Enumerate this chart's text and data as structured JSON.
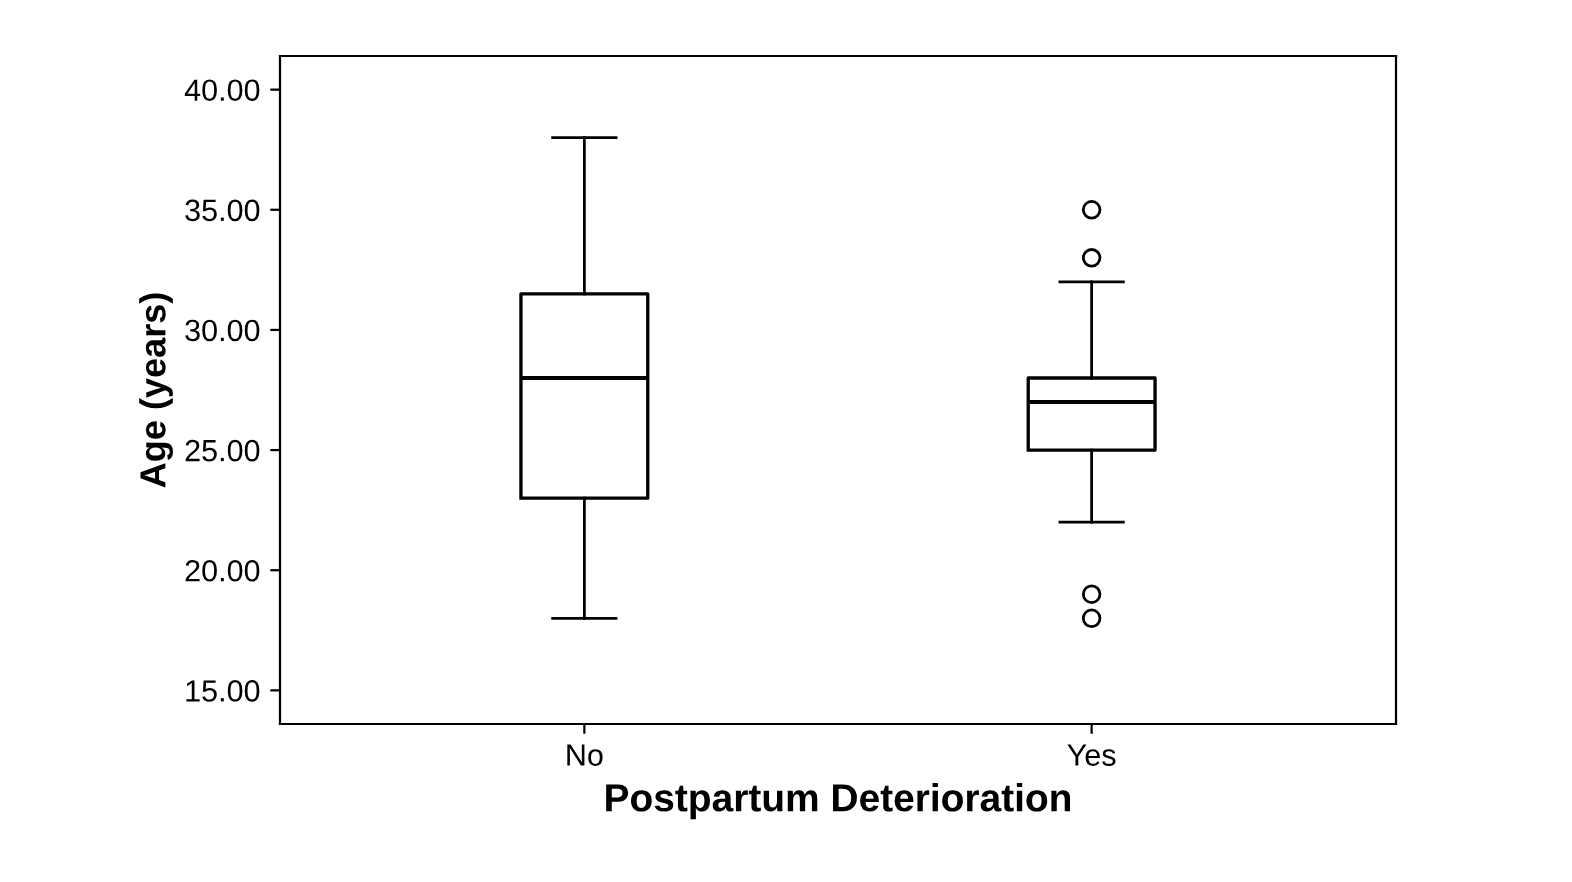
{
  "chart_data": {
    "type": "box",
    "xlabel": "Postpartum Deterioration",
    "ylabel": "Age (years)",
    "categories": [
      "No",
      "Yes"
    ],
    "boxes": [
      {
        "low": 18,
        "q1": 23,
        "median": 28,
        "q3": 31.5,
        "high": 38
      },
      {
        "low": 22,
        "q1": 25,
        "median": 27,
        "q3": 28,
        "high": 32,
        "outliers": [
          35,
          33,
          19,
          18
        ]
      }
    ],
    "color": "#000000",
    "ylim": [
      13.6,
      41.4
    ],
    "yticks": [
      {
        "value": 15,
        "label": "15.00"
      },
      {
        "value": 20,
        "label": "20.00"
      },
      {
        "value": 25,
        "label": "25.00"
      },
      {
        "value": 30,
        "label": "30.00"
      },
      {
        "value": 35,
        "label": "35.00"
      },
      {
        "value": 40,
        "label": "40.00"
      }
    ],
    "grid": false
  }
}
